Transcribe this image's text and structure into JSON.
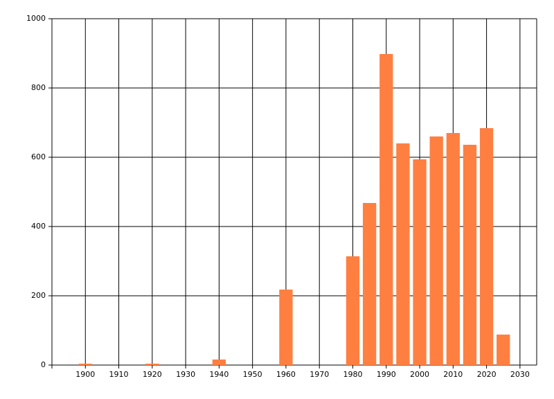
{
  "chart_data": {
    "type": "bar",
    "x": [
      1900,
      1920,
      1940,
      1960,
      1980,
      1985,
      1990,
      1995,
      2000,
      2005,
      2010,
      2015,
      2020,
      2025
    ],
    "values": [
      4,
      4,
      16,
      218,
      314,
      468,
      898,
      640,
      594,
      660,
      670,
      636,
      684,
      88
    ],
    "color": "#ff7f41",
    "xlim": [
      1890,
      2035
    ],
    "xticks": [
      1900,
      1910,
      1920,
      1930,
      1940,
      1950,
      1960,
      1970,
      1980,
      1990,
      2000,
      2010,
      2020,
      2030
    ],
    "ylim": [
      0,
      1000
    ],
    "yticks": [
      0,
      200,
      400,
      600,
      800,
      1000
    ],
    "grid": true
  }
}
